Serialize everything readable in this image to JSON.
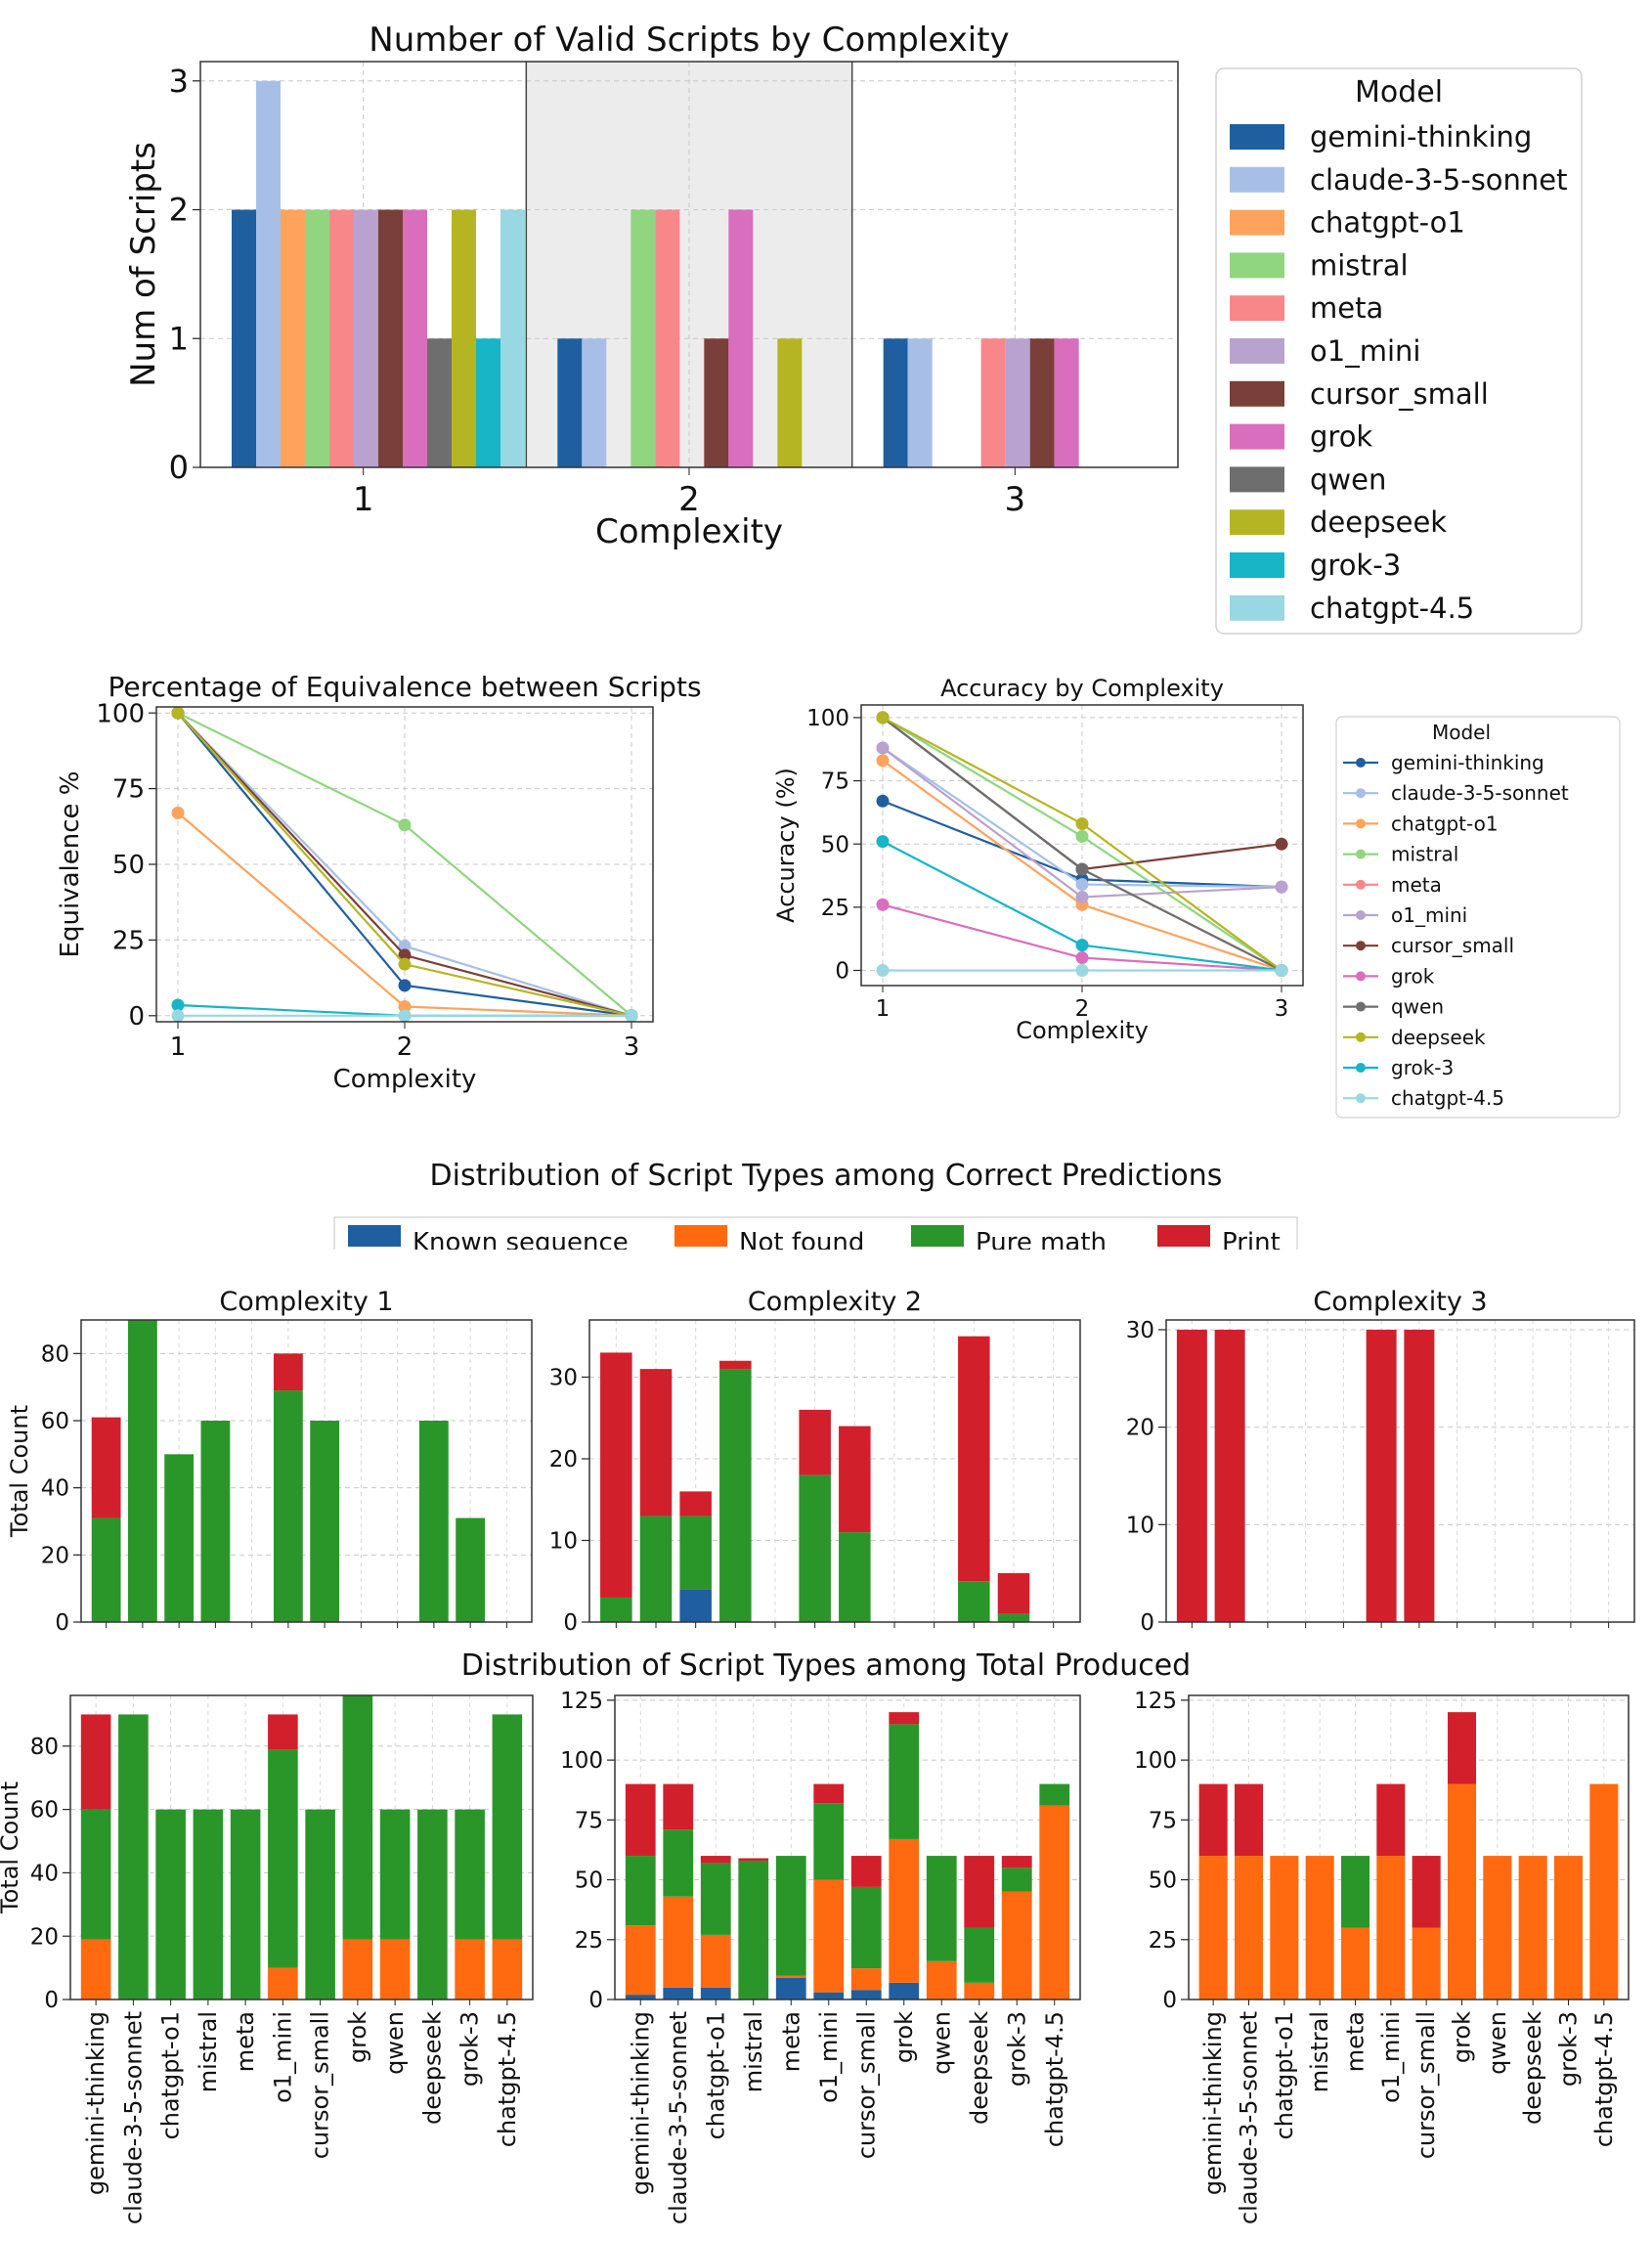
{
  "models": [
    "gemini-thinking",
    "claude-3-5-sonnet",
    "chatgpt-o1",
    "mistral",
    "meta",
    "o1_mini",
    "cursor_small",
    "grok",
    "qwen",
    "deepseek",
    "grok-3",
    "chatgpt-4.5"
  ],
  "model_colors": [
    "#1f5fa0",
    "#a7bfe6",
    "#ffa35c",
    "#8fd67f",
    "#f8878a",
    "#b9a2cf",
    "#7a3f38",
    "#d86ebd",
    "#6e6e6e",
    "#b5b524",
    "#17b5c6",
    "#99d7e3"
  ],
  "type_colors": {
    "Known sequence": "#1f5fa0",
    "Not found": "#ff6a10",
    "Pure math": "#2a962a",
    "Print": "#d1202b"
  },
  "section_titles": {
    "dist_correct": "Distribution of Script Types among Correct Predictions",
    "dist_total": "Distribution of Script Types among Total Produced"
  },
  "legends": {
    "model_title": "Model",
    "types": [
      "Known sequence",
      "Not found",
      "Pure math",
      "Print"
    ]
  },
  "chart_data": [
    {
      "id": "valid_scripts",
      "type": "bar",
      "title": "Number of Valid Scripts by Complexity",
      "xlabel": "Complexity",
      "ylabel": "Num of Scripts",
      "categories": [
        "1",
        "2",
        "3"
      ],
      "ylim": [
        0,
        3.15
      ],
      "yticks": [
        0,
        1,
        2,
        3
      ],
      "highlight_category": "2",
      "series": [
        {
          "name": "gemini-thinking",
          "values": [
            2,
            1,
            1
          ]
        },
        {
          "name": "claude-3-5-sonnet",
          "values": [
            3,
            1,
            1
          ]
        },
        {
          "name": "chatgpt-o1",
          "values": [
            2,
            0,
            0
          ]
        },
        {
          "name": "mistral",
          "values": [
            2,
            2,
            0
          ]
        },
        {
          "name": "meta",
          "values": [
            2,
            2,
            1
          ]
        },
        {
          "name": "o1_mini",
          "values": [
            2,
            0,
            1
          ]
        },
        {
          "name": "cursor_small",
          "values": [
            2,
            1,
            1
          ]
        },
        {
          "name": "grok",
          "values": [
            2,
            2,
            1
          ]
        },
        {
          "name": "qwen",
          "values": [
            1,
            0,
            0
          ]
        },
        {
          "name": "deepseek",
          "values": [
            2,
            1,
            0
          ]
        },
        {
          "name": "grok-3",
          "values": [
            1,
            0,
            0
          ]
        },
        {
          "name": "chatgpt-4.5",
          "values": [
            2,
            0,
            0
          ]
        }
      ]
    },
    {
      "id": "equivalence",
      "type": "line",
      "title": "Percentage of Equivalence between Scripts",
      "xlabel": "Complexity",
      "ylabel": "Equivalence %",
      "x": [
        1,
        2,
        3
      ],
      "ylim": [
        -2,
        102
      ],
      "yticks": [
        0,
        25,
        50,
        75,
        100
      ],
      "series": [
        {
          "name": "gemini-thinking",
          "values": [
            100,
            10,
            0
          ]
        },
        {
          "name": "claude-3-5-sonnet",
          "values": [
            100,
            23,
            0
          ]
        },
        {
          "name": "chatgpt-o1",
          "values": [
            67,
            3,
            0
          ]
        },
        {
          "name": "mistral",
          "values": [
            100,
            63,
            0
          ]
        },
        {
          "name": "cursor_small",
          "values": [
            100,
            20,
            0
          ]
        },
        {
          "name": "deepseek",
          "values": [
            100,
            17,
            0
          ]
        },
        {
          "name": "grok-3",
          "values": [
            3.5,
            0,
            0
          ]
        },
        {
          "name": "chatgpt-4.5",
          "values": [
            0,
            0,
            0
          ]
        }
      ]
    },
    {
      "id": "accuracy",
      "type": "line",
      "title": "Accuracy by Complexity",
      "xlabel": "Complexity",
      "ylabel": "Accuracy (%)",
      "x": [
        1,
        2,
        3
      ],
      "ylim": [
        -6,
        105
      ],
      "yticks": [
        0,
        25,
        50,
        75,
        100
      ],
      "series": [
        {
          "name": "gemini-thinking",
          "values": [
            67,
            36,
            33
          ]
        },
        {
          "name": "claude-3-5-sonnet",
          "values": [
            88,
            34,
            33
          ]
        },
        {
          "name": "chatgpt-o1",
          "values": [
            83,
            26,
            0
          ]
        },
        {
          "name": "mistral",
          "values": [
            100,
            53,
            0
          ]
        },
        {
          "name": "meta",
          "values": [
            100,
            40,
            0
          ]
        },
        {
          "name": "o1_mini",
          "values": [
            88,
            29,
            33
          ]
        },
        {
          "name": "cursor_small",
          "values": [
            100,
            40,
            50
          ]
        },
        {
          "name": "grok",
          "values": [
            26,
            5,
            0
          ]
        },
        {
          "name": "qwen",
          "values": [
            100,
            40,
            0
          ]
        },
        {
          "name": "deepseek",
          "values": [
            100,
            58,
            0
          ]
        },
        {
          "name": "grok-3",
          "values": [
            51,
            10,
            0
          ]
        },
        {
          "name": "chatgpt-4.5",
          "values": [
            0,
            0,
            0
          ]
        }
      ]
    },
    {
      "id": "correct_c1",
      "type": "bar",
      "stacked": true,
      "title": "Complexity 1",
      "ylabel": "Total Count",
      "ylim": [
        0,
        90
      ],
      "yticks": [
        0,
        20,
        40,
        60,
        80
      ],
      "stacks": [
        {
          "Pure math": 31,
          "Print": 30
        },
        {
          "Pure math": 90
        },
        {
          "Pure math": 50
        },
        {
          "Pure math": 60
        },
        {},
        {
          "Pure math": 69,
          "Print": 11
        },
        {
          "Pure math": 60
        },
        {},
        {},
        {
          "Pure math": 60
        },
        {
          "Pure math": 31
        },
        {}
      ]
    },
    {
      "id": "correct_c2",
      "type": "bar",
      "stacked": true,
      "title": "Complexity 2",
      "ylabel": "",
      "ylim": [
        0,
        37
      ],
      "yticks": [
        0,
        10,
        20,
        30
      ],
      "stacks": [
        {
          "Pure math": 3,
          "Print": 30
        },
        {
          "Pure math": 13,
          "Print": 18
        },
        {
          "Known sequence": 4,
          "Pure math": 9,
          "Print": 3
        },
        {
          "Pure math": 31,
          "Print": 1
        },
        {},
        {
          "Pure math": 18,
          "Print": 8
        },
        {
          "Pure math": 11,
          "Print": 13
        },
        {},
        {},
        {
          "Pure math": 5,
          "Print": 30
        },
        {
          "Pure math": 1,
          "Print": 5
        },
        {}
      ]
    },
    {
      "id": "correct_c3",
      "type": "bar",
      "stacked": true,
      "title": "Complexity 3",
      "ylabel": "",
      "ylim": [
        0,
        31
      ],
      "yticks": [
        0,
        10,
        20,
        30
      ],
      "stacks": [
        {
          "Print": 30
        },
        {
          "Print": 30
        },
        {},
        {},
        {},
        {
          "Print": 30
        },
        {
          "Print": 30
        },
        {},
        {},
        {},
        {},
        {}
      ]
    },
    {
      "id": "total_c1",
      "type": "bar",
      "stacked": true,
      "title": "",
      "ylabel": "Total Count",
      "ylim": [
        0,
        96
      ],
      "yticks": [
        0,
        20,
        40,
        60,
        80
      ],
      "stacks": [
        {
          "Not found": 19,
          "Pure math": 41,
          "Print": 30
        },
        {
          "Pure math": 90
        },
        {
          "Pure math": 60
        },
        {
          "Pure math": 60
        },
        {
          "Pure math": 60
        },
        {
          "Not found": 10,
          "Pure math": 69,
          "Print": 11
        },
        {
          "Pure math": 60
        },
        {
          "Not found": 19,
          "Pure math": 77
        },
        {
          "Not found": 19,
          "Pure math": 41
        },
        {
          "Pure math": 60
        },
        {
          "Not found": 19,
          "Pure math": 41
        },
        {
          "Not found": 19,
          "Pure math": 71
        }
      ]
    },
    {
      "id": "total_c2",
      "type": "bar",
      "stacked": true,
      "title": "",
      "ylabel": "",
      "ylim": [
        0,
        127
      ],
      "yticks": [
        0,
        25,
        50,
        75,
        100,
        125
      ],
      "stacks": [
        {
          "Known sequence": 2,
          "Not found": 29,
          "Pure math": 29,
          "Print": 30
        },
        {
          "Known sequence": 5,
          "Not found": 38,
          "Pure math": 28,
          "Print": 19
        },
        {
          "Known sequence": 5,
          "Not found": 22,
          "Pure math": 30,
          "Print": 3
        },
        {
          "Pure math": 58,
          "Print": 1
        },
        {
          "Known sequence": 9,
          "Not found": 1,
          "Pure math": 50
        },
        {
          "Known sequence": 3,
          "Not found": 47,
          "Pure math": 32,
          "Print": 8
        },
        {
          "Known sequence": 4,
          "Not found": 9,
          "Pure math": 34,
          "Print": 13
        },
        {
          "Known sequence": 7,
          "Not found": 60,
          "Pure math": 48,
          "Print": 5
        },
        {
          "Not found": 16,
          "Pure math": 44
        },
        {
          "Not found": 7,
          "Pure math": 23,
          "Print": 30
        },
        {
          "Not found": 45,
          "Pure math": 10,
          "Print": 5
        },
        {
          "Not found": 81,
          "Pure math": 9
        }
      ]
    },
    {
      "id": "total_c3",
      "type": "bar",
      "stacked": true,
      "title": "",
      "ylabel": "",
      "ylim": [
        0,
        127
      ],
      "yticks": [
        0,
        25,
        50,
        75,
        100,
        125
      ],
      "stacks": [
        {
          "Not found": 60,
          "Print": 30
        },
        {
          "Not found": 60,
          "Print": 30
        },
        {
          "Not found": 60
        },
        {
          "Not found": 60
        },
        {
          "Not found": 30,
          "Pure math": 30
        },
        {
          "Not found": 60,
          "Print": 30
        },
        {
          "Not found": 30,
          "Print": 30
        },
        {
          "Not found": 90,
          "Print": 30
        },
        {
          "Not found": 60
        },
        {
          "Not found": 60
        },
        {
          "Not found": 60
        },
        {
          "Not found": 90
        }
      ]
    }
  ]
}
